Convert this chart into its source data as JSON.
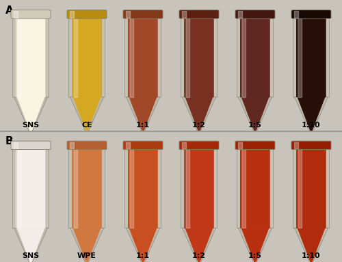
{
  "panel_A": {
    "label": "A",
    "bg_color": "#ddd8cc",
    "tubes": [
      {
        "label": "SNS",
        "liquid_color": "#f8f4e0",
        "tube_color": "#e8e4d0",
        "cap_color": "#d0ccb8"
      },
      {
        "label": "CE",
        "liquid_color": "#d4a820",
        "tube_color": "#c89c18",
        "cap_color": "#b88c10"
      },
      {
        "label": "1:1",
        "liquid_color": "#a04828",
        "tube_color": "#944020",
        "cap_color": "#843818"
      },
      {
        "label": "1:2",
        "liquid_color": "#783020",
        "tube_color": "#6c2818",
        "cap_color": "#5c2010"
      },
      {
        "label": "1:5",
        "liquid_color": "#602820",
        "tube_color": "#542018",
        "cap_color": "#441810"
      },
      {
        "label": "1:10",
        "liquid_color": "#281008",
        "tube_color": "#200c04",
        "cap_color": "#180804"
      }
    ]
  },
  "panel_B": {
    "label": "B",
    "bg_color": "#edddd8",
    "tubes": [
      {
        "label": "SNS",
        "liquid_color": "#f4ece8",
        "tube_color": "#ece4e0",
        "cap_color": "#dcd4d0"
      },
      {
        "label": "WPE",
        "liquid_color": "#d07840",
        "tube_color": "#c46c38",
        "cap_color": "#b46030"
      },
      {
        "label": "1:1",
        "liquid_color": "#c85020",
        "tube_color": "#bc4818",
        "cap_color": "#ac3c10"
      },
      {
        "label": "1:2",
        "liquid_color": "#c03818",
        "tube_color": "#b43010",
        "cap_color": "#a42808"
      },
      {
        "label": "1:5",
        "liquid_color": "#b83010",
        "tube_color": "#ac2808",
        "cap_color": "#9c2004"
      },
      {
        "label": "1:10",
        "liquid_color": "#b02c0c",
        "tube_color": "#a42404",
        "cap_color": "#941c00"
      }
    ]
  },
  "figure_bg": "#c8c4bc",
  "label_color": "#000000",
  "panel_label_fontsize": 11,
  "tube_label_fontsize": 8,
  "divider_color": "#999999"
}
